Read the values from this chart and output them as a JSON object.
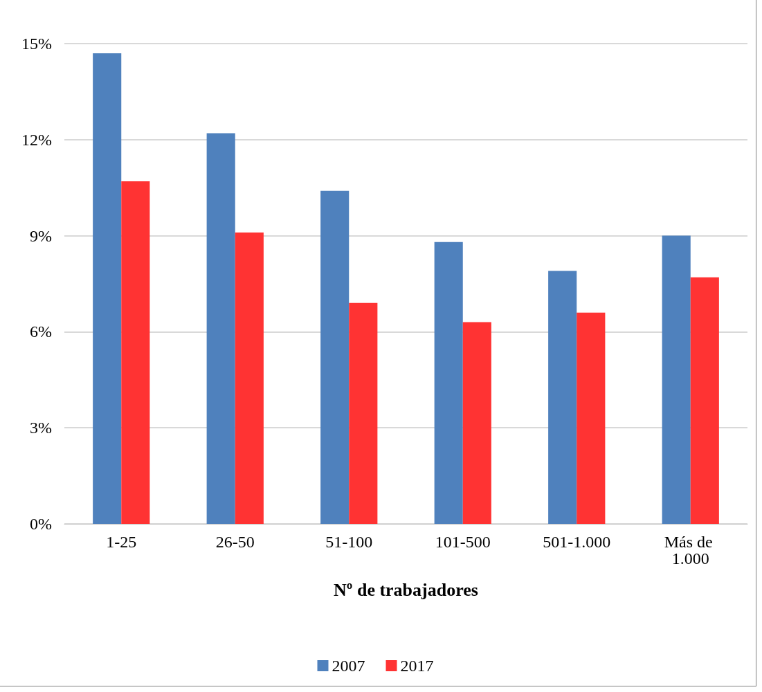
{
  "chart_data": {
    "type": "bar",
    "xlabel": "Nº de trabajadores",
    "categories": [
      "1-25",
      "26-50",
      "51-100",
      "101-500",
      "501-1.000",
      "Más de 1.000"
    ],
    "series": [
      {
        "name": "2007",
        "color": "#4f81bd",
        "values": [
          14.7,
          12.2,
          10.4,
          8.8,
          7.9,
          9.0
        ]
      },
      {
        "name": "2017",
        "color": "#ff3333",
        "values": [
          10.7,
          9.1,
          6.9,
          6.3,
          6.6,
          7.7
        ]
      }
    ],
    "ylim": [
      0,
      15
    ],
    "yticks": [
      {
        "value": 0,
        "label": "0%"
      },
      {
        "value": 3,
        "label": "3%"
      },
      {
        "value": 6,
        "label": "6%"
      },
      {
        "value": 9,
        "label": "9%"
      },
      {
        "value": 12,
        "label": "12%"
      },
      {
        "value": 15,
        "label": "15%"
      }
    ],
    "grid": "y",
    "legend": "bottom"
  }
}
